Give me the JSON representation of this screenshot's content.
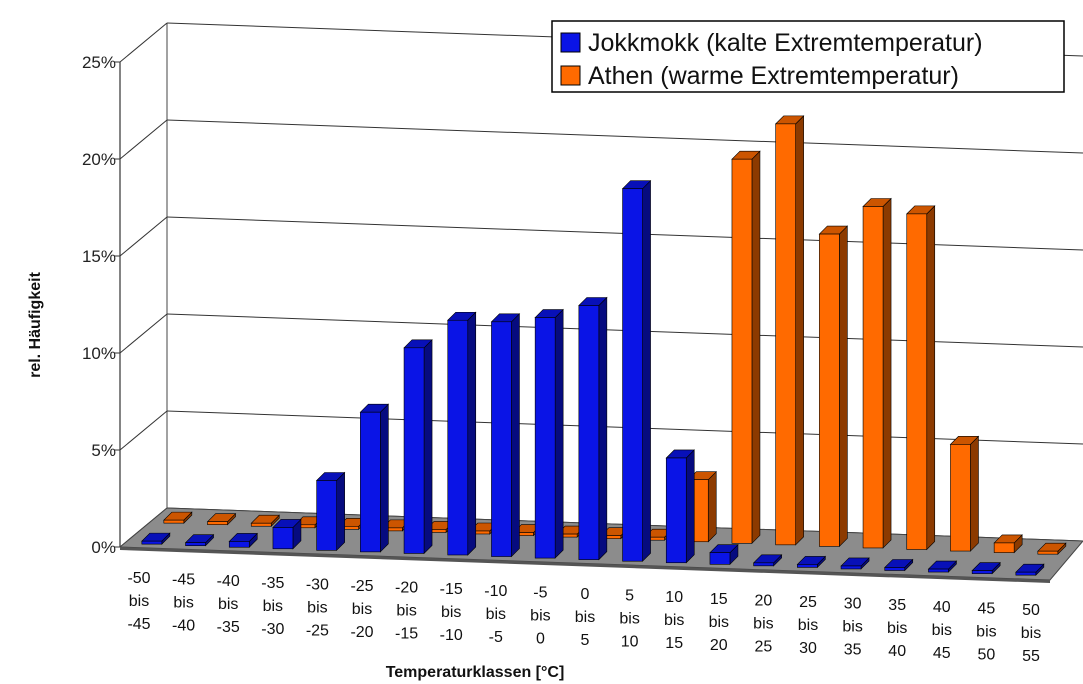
{
  "chart_data": {
    "type": "bar",
    "title": "",
    "xlabel": "Temperaturklassen [°C]",
    "ylabel": "rel. Häufigkeit",
    "ylim": [
      0,
      25
    ],
    "yticks": [
      "0%",
      "5%",
      "10%",
      "15%",
      "20%",
      "25%"
    ],
    "ytick_values": [
      0,
      5,
      10,
      15,
      20,
      25
    ],
    "grid": true,
    "legend_position": "top-right",
    "categories": [
      [
        "-50",
        "bis",
        "-45"
      ],
      [
        "-45",
        "bis",
        "-40"
      ],
      [
        "-40",
        "bis",
        "-35"
      ],
      [
        "-35",
        "bis",
        "-30"
      ],
      [
        "-30",
        "bis",
        "-25"
      ],
      [
        "-25",
        "bis",
        "-20"
      ],
      [
        "-20",
        "bis",
        "-15"
      ],
      [
        "-15",
        "bis",
        "-10"
      ],
      [
        "-10",
        "bis",
        "-5"
      ],
      [
        "-5",
        "bis",
        "0"
      ],
      [
        "0",
        "bis",
        "5"
      ],
      [
        "5",
        "bis",
        "10"
      ],
      [
        "10",
        "bis",
        "15"
      ],
      [
        "15",
        "bis",
        "20"
      ],
      [
        "20",
        "bis",
        "25"
      ],
      [
        "25",
        "bis",
        "30"
      ],
      [
        "30",
        "bis",
        "35"
      ],
      [
        "35",
        "bis",
        "40"
      ],
      [
        "40",
        "bis",
        "45"
      ],
      [
        "45",
        "bis",
        "50"
      ],
      [
        "50",
        "bis",
        "55"
      ]
    ],
    "series": [
      {
        "name": "Jokkmokk (kalte Extremtemperatur)",
        "color": "#0a14e6",
        "values": [
          0,
          0,
          0.3,
          1.1,
          3.6,
          7.2,
          10.6,
          12.1,
          12.1,
          12.4,
          13.1,
          19.2,
          5.4,
          0.6,
          0,
          0,
          0,
          0,
          0,
          0,
          0
        ]
      },
      {
        "name": "Athen (warme Extremtemperatur)",
        "color": "#ff6a00",
        "values": [
          0,
          0,
          0,
          0,
          0,
          0,
          0,
          0,
          0,
          0,
          0,
          0,
          3.2,
          19.8,
          21.7,
          16.1,
          17.6,
          17.3,
          5.5,
          0.5,
          0
        ]
      }
    ]
  }
}
